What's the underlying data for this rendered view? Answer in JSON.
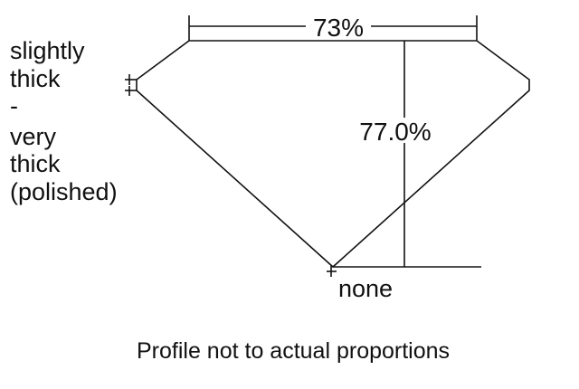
{
  "girdle_label": {
    "lines": [
      "slightly",
      "thick",
      "-",
      "very",
      "thick",
      "(polished)"
    ]
  },
  "table_percent": "73%",
  "depth_percent": "77.0%",
  "culet_label": "none",
  "caption": "Profile not to actual proportions"
}
